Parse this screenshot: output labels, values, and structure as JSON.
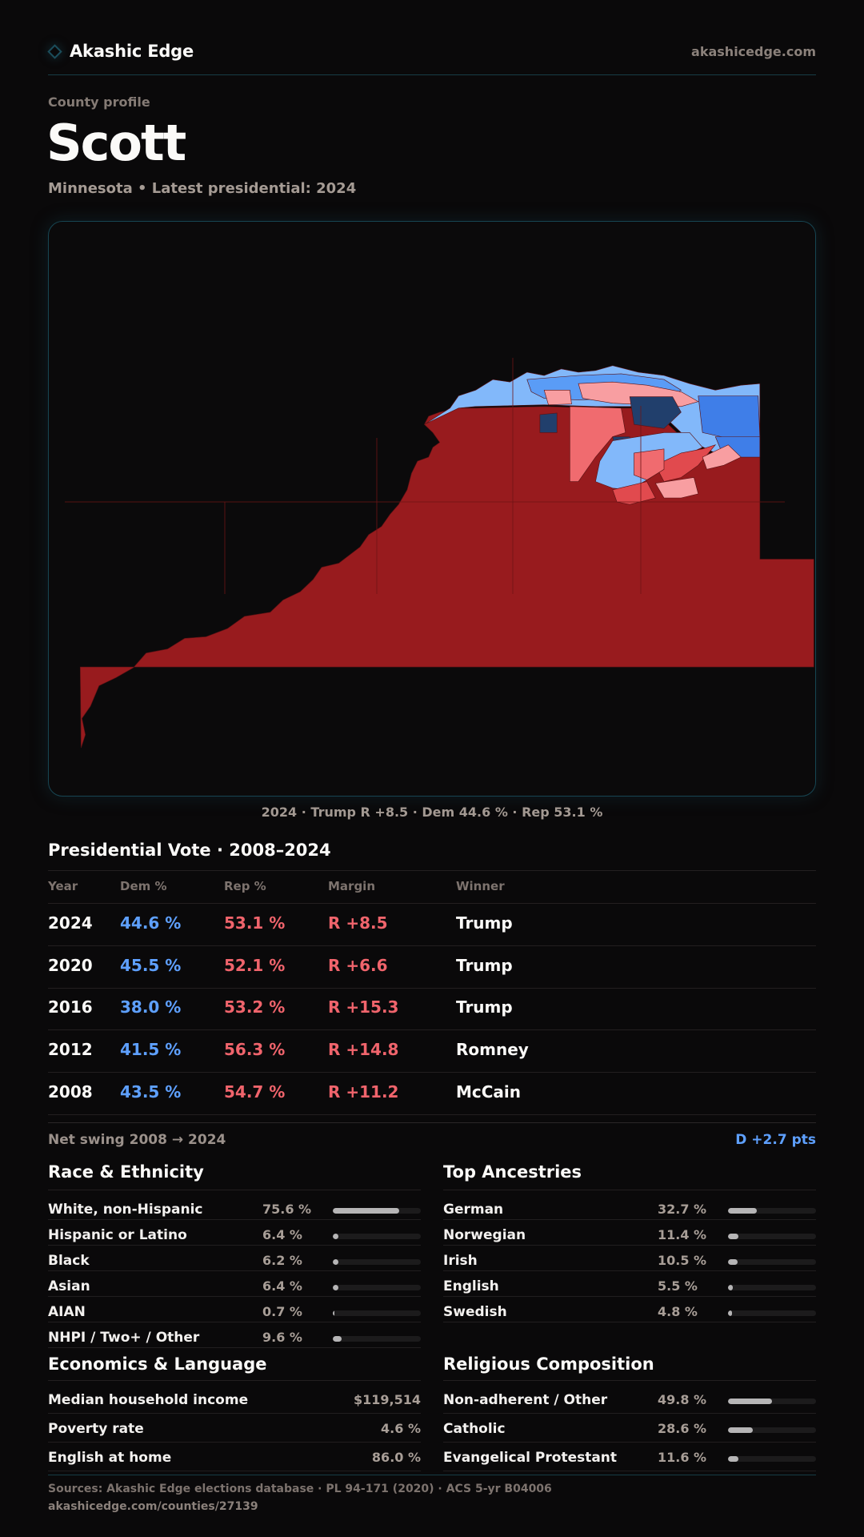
{
  "header": {
    "brand": "Akashic Edge",
    "brand_icon": "diamond-outline-icon",
    "site_link": "akashicedge.com"
  },
  "profile": {
    "eyebrow": "County profile",
    "county": "Scott",
    "subtitle": "Minnesota • Latest presidential: 2024"
  },
  "map": {
    "caption": "2024 · Trump R +8.5 · Dem 44.6 % · Rep 53.1 %",
    "colors": {
      "safe_rep": "#981b1e",
      "rep_lean": "#f06b6f",
      "rep_light": "#f89ea1",
      "rep_mid": "#e14a4e",
      "dem_light": "#82b8fa",
      "dem_mid": "#5a9cf6",
      "dem_strong": "#3f7ee8",
      "dem_dark": "#213f6c"
    }
  },
  "presidential": {
    "title": "Presidential Vote · 2008–2024",
    "columns": [
      "Year",
      "Dem %",
      "Rep %",
      "Margin",
      "Winner"
    ],
    "rows": [
      {
        "year": "2024",
        "dem": "44.6 %",
        "rep": "53.1 %",
        "margin": "R +8.5",
        "winner": "Trump"
      },
      {
        "year": "2020",
        "dem": "45.5 %",
        "rep": "52.1 %",
        "margin": "R +6.6",
        "winner": "Trump"
      },
      {
        "year": "2016",
        "dem": "38.0 %",
        "rep": "53.2 %",
        "margin": "R +15.3",
        "winner": "Trump"
      },
      {
        "year": "2012",
        "dem": "41.5 %",
        "rep": "56.3 %",
        "margin": "R +14.8",
        "winner": "Romney"
      },
      {
        "year": "2008",
        "dem": "43.5 %",
        "rep": "54.7 %",
        "margin": "R +11.2",
        "winner": "McCain"
      }
    ],
    "swing_label": "Net swing 2008 → 2024",
    "swing_value": "D +2.7 pts"
  },
  "race": {
    "title": "Race & Ethnicity",
    "items": [
      {
        "label": "White, non-Hispanic",
        "value": "75.6 %",
        "pct": 75.6
      },
      {
        "label": "Hispanic or Latino",
        "value": "6.4 %",
        "pct": 6.4
      },
      {
        "label": "Black",
        "value": "6.2 %",
        "pct": 6.2
      },
      {
        "label": "Asian",
        "value": "6.4 %",
        "pct": 6.4
      },
      {
        "label": "AIAN",
        "value": "0.7 %",
        "pct": 0.7
      },
      {
        "label": "NHPI / Two+ / Other",
        "value": "9.6 %",
        "pct": 9.6
      }
    ]
  },
  "ancestry": {
    "title": "Top Ancestries",
    "items": [
      {
        "label": "German",
        "value": "32.7 %",
        "pct": 32.7
      },
      {
        "label": "Norwegian",
        "value": "11.4 %",
        "pct": 11.4
      },
      {
        "label": "Irish",
        "value": "10.5 %",
        "pct": 10.5
      },
      {
        "label": "English",
        "value": "5.5 %",
        "pct": 5.5
      },
      {
        "label": "Swedish",
        "value": "4.8 %",
        "pct": 4.8
      }
    ]
  },
  "economics": {
    "title": "Economics & Language",
    "items": [
      {
        "label": "Median household income",
        "value": "$119,514"
      },
      {
        "label": "Poverty rate",
        "value": "4.6 %"
      },
      {
        "label": "English at home",
        "value": "86.0 %"
      }
    ]
  },
  "religion": {
    "title": "Religious Composition",
    "items": [
      {
        "label": "Non-adherent / Other",
        "value": "49.8 %",
        "pct": 49.8
      },
      {
        "label": "Catholic",
        "value": "28.6 %",
        "pct": 28.6
      },
      {
        "label": "Evangelical Protestant",
        "value": "11.6 %",
        "pct": 11.6
      }
    ]
  },
  "footer": {
    "sources": "Sources: Akashic Edge elections database · PL 94-171 (2020) · ACS 5-yr B04006",
    "url": "akashicedge.com/counties/27139"
  }
}
